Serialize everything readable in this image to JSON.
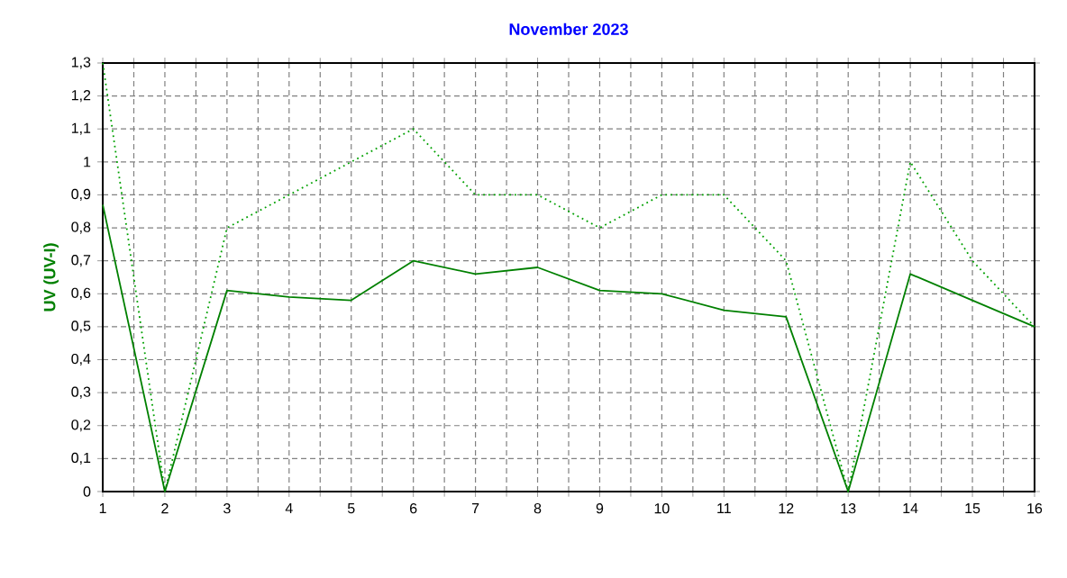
{
  "chart_data": {
    "type": "line",
    "title": "November 2023",
    "ylabel": "UV  (UV-I)",
    "x": [
      1,
      2,
      3,
      4,
      5,
      6,
      7,
      8,
      9,
      10,
      11,
      12,
      13,
      14,
      15,
      16
    ],
    "series": [
      {
        "color": "#00a000",
        "line_style": "dotted",
        "values": [
          1.3,
          0,
          0.8,
          0.9,
          1.0,
          1.1,
          0.9,
          0.9,
          0.8,
          0.9,
          0.9,
          0.7,
          0,
          1.0,
          0.7,
          0.5
        ]
      },
      {
        "color": "#008000",
        "line_style": "solid",
        "values": [
          0.87,
          0,
          0.61,
          0.59,
          0.58,
          0.7,
          0.66,
          0.68,
          0.61,
          0.6,
          0.55,
          0.53,
          0,
          0.66,
          0.58,
          0.5
        ]
      }
    ],
    "xlim": [
      1,
      16
    ],
    "ylim": [
      0,
      1.3
    ],
    "xticks": [
      1,
      2,
      3,
      4,
      5,
      6,
      7,
      8,
      9,
      10,
      11,
      12,
      13,
      14,
      15,
      16
    ],
    "yticks": [
      0,
      {
        "value": 0.1,
        "label": "0,1"
      },
      {
        "value": 0.2,
        "label": "0,2"
      },
      {
        "value": 0.3,
        "label": "0,3"
      },
      {
        "value": 0.4,
        "label": "0,4"
      },
      {
        "value": 0.5,
        "label": "0,5"
      },
      {
        "value": 0.6,
        "label": "0,6"
      },
      {
        "value": 0.7,
        "label": "0,7"
      },
      {
        "value": 0.8,
        "label": "0,8"
      },
      {
        "value": 0.9,
        "label": "0,9"
      },
      1,
      {
        "value": 1.1,
        "label": "1,1"
      },
      {
        "value": 1.2,
        "label": "1,2"
      },
      {
        "value": 1.3,
        "label": "1,3"
      }
    ],
    "grid": true,
    "marker": "none"
  }
}
